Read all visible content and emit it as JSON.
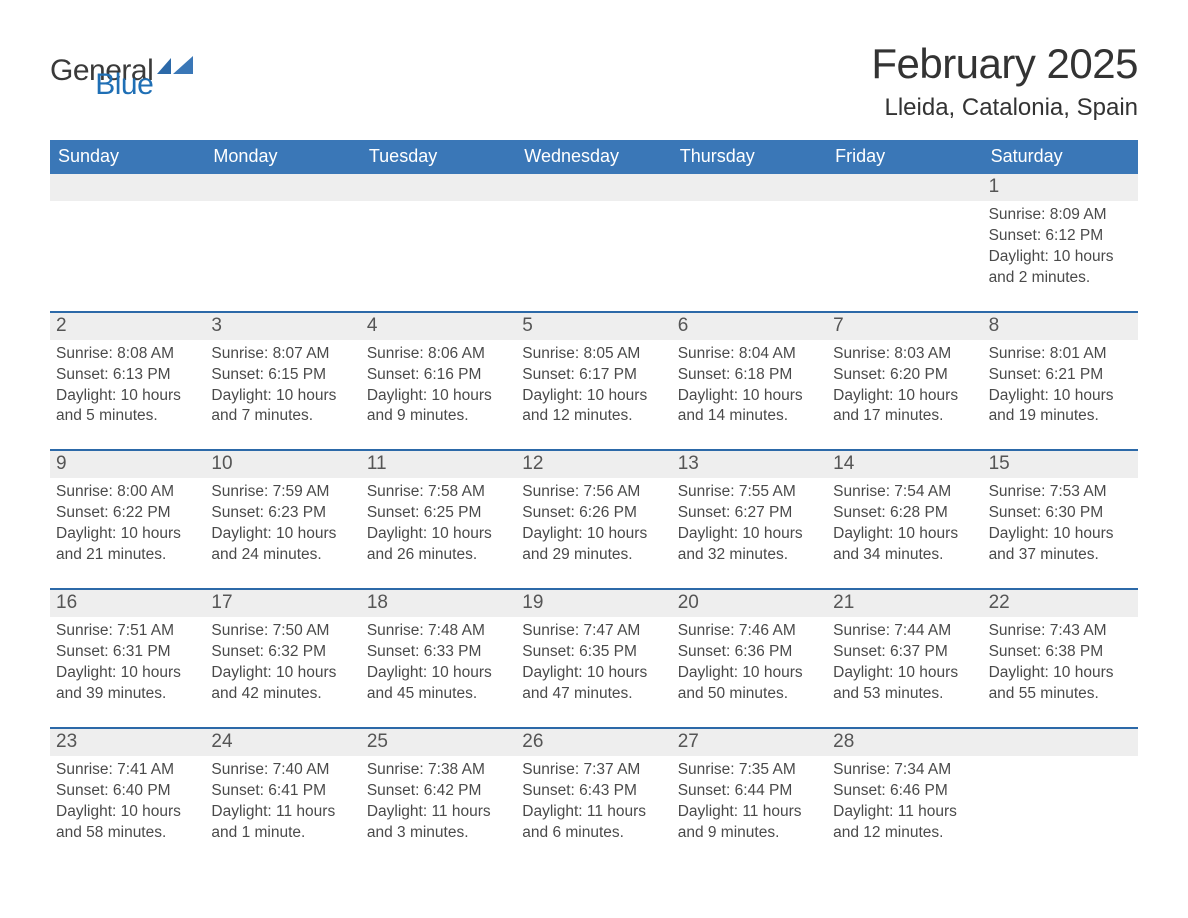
{
  "brand": {
    "word1": "General",
    "word2": "Blue"
  },
  "title": "February 2025",
  "location": "Lleida, Catalonia, Spain",
  "weekdays": [
    "Sunday",
    "Monday",
    "Tuesday",
    "Wednesday",
    "Thursday",
    "Friday",
    "Saturday"
  ],
  "colors": {
    "header_blue": "#3a77b7",
    "accent_blue": "#2c69a8",
    "logo_blue": "#1f6fb5",
    "row_gray": "#eeeeee",
    "background": "#ffffff"
  },
  "weeks": [
    {
      "days": [
        {
          "num": "",
          "lines": []
        },
        {
          "num": "",
          "lines": []
        },
        {
          "num": "",
          "lines": []
        },
        {
          "num": "",
          "lines": []
        },
        {
          "num": "",
          "lines": []
        },
        {
          "num": "",
          "lines": []
        },
        {
          "num": "1",
          "lines": [
            "Sunrise: 8:09 AM",
            "Sunset: 6:12 PM",
            "Daylight: 10 hours and 2 minutes."
          ]
        }
      ]
    },
    {
      "days": [
        {
          "num": "2",
          "lines": [
            "Sunrise: 8:08 AM",
            "Sunset: 6:13 PM",
            "Daylight: 10 hours and 5 minutes."
          ]
        },
        {
          "num": "3",
          "lines": [
            "Sunrise: 8:07 AM",
            "Sunset: 6:15 PM",
            "Daylight: 10 hours and 7 minutes."
          ]
        },
        {
          "num": "4",
          "lines": [
            "Sunrise: 8:06 AM",
            "Sunset: 6:16 PM",
            "Daylight: 10 hours and 9 minutes."
          ]
        },
        {
          "num": "5",
          "lines": [
            "Sunrise: 8:05 AM",
            "Sunset: 6:17 PM",
            "Daylight: 10 hours and 12 minutes."
          ]
        },
        {
          "num": "6",
          "lines": [
            "Sunrise: 8:04 AM",
            "Sunset: 6:18 PM",
            "Daylight: 10 hours and 14 minutes."
          ]
        },
        {
          "num": "7",
          "lines": [
            "Sunrise: 8:03 AM",
            "Sunset: 6:20 PM",
            "Daylight: 10 hours and 17 minutes."
          ]
        },
        {
          "num": "8",
          "lines": [
            "Sunrise: 8:01 AM",
            "Sunset: 6:21 PM",
            "Daylight: 10 hours and 19 minutes."
          ]
        }
      ]
    },
    {
      "days": [
        {
          "num": "9",
          "lines": [
            "Sunrise: 8:00 AM",
            "Sunset: 6:22 PM",
            "Daylight: 10 hours and 21 minutes."
          ]
        },
        {
          "num": "10",
          "lines": [
            "Sunrise: 7:59 AM",
            "Sunset: 6:23 PM",
            "Daylight: 10 hours and 24 minutes."
          ]
        },
        {
          "num": "11",
          "lines": [
            "Sunrise: 7:58 AM",
            "Sunset: 6:25 PM",
            "Daylight: 10 hours and 26 minutes."
          ]
        },
        {
          "num": "12",
          "lines": [
            "Sunrise: 7:56 AM",
            "Sunset: 6:26 PM",
            "Daylight: 10 hours and 29 minutes."
          ]
        },
        {
          "num": "13",
          "lines": [
            "Sunrise: 7:55 AM",
            "Sunset: 6:27 PM",
            "Daylight: 10 hours and 32 minutes."
          ]
        },
        {
          "num": "14",
          "lines": [
            "Sunrise: 7:54 AM",
            "Sunset: 6:28 PM",
            "Daylight: 10 hours and 34 minutes."
          ]
        },
        {
          "num": "15",
          "lines": [
            "Sunrise: 7:53 AM",
            "Sunset: 6:30 PM",
            "Daylight: 10 hours and 37 minutes."
          ]
        }
      ]
    },
    {
      "days": [
        {
          "num": "16",
          "lines": [
            "Sunrise: 7:51 AM",
            "Sunset: 6:31 PM",
            "Daylight: 10 hours and 39 minutes."
          ]
        },
        {
          "num": "17",
          "lines": [
            "Sunrise: 7:50 AM",
            "Sunset: 6:32 PM",
            "Daylight: 10 hours and 42 minutes."
          ]
        },
        {
          "num": "18",
          "lines": [
            "Sunrise: 7:48 AM",
            "Sunset: 6:33 PM",
            "Daylight: 10 hours and 45 minutes."
          ]
        },
        {
          "num": "19",
          "lines": [
            "Sunrise: 7:47 AM",
            "Sunset: 6:35 PM",
            "Daylight: 10 hours and 47 minutes."
          ]
        },
        {
          "num": "20",
          "lines": [
            "Sunrise: 7:46 AM",
            "Sunset: 6:36 PM",
            "Daylight: 10 hours and 50 minutes."
          ]
        },
        {
          "num": "21",
          "lines": [
            "Sunrise: 7:44 AM",
            "Sunset: 6:37 PM",
            "Daylight: 10 hours and 53 minutes."
          ]
        },
        {
          "num": "22",
          "lines": [
            "Sunrise: 7:43 AM",
            "Sunset: 6:38 PM",
            "Daylight: 10 hours and 55 minutes."
          ]
        }
      ]
    },
    {
      "days": [
        {
          "num": "23",
          "lines": [
            "Sunrise: 7:41 AM",
            "Sunset: 6:40 PM",
            "Daylight: 10 hours and 58 minutes."
          ]
        },
        {
          "num": "24",
          "lines": [
            "Sunrise: 7:40 AM",
            "Sunset: 6:41 PM",
            "Daylight: 11 hours and 1 minute."
          ]
        },
        {
          "num": "25",
          "lines": [
            "Sunrise: 7:38 AM",
            "Sunset: 6:42 PM",
            "Daylight: 11 hours and 3 minutes."
          ]
        },
        {
          "num": "26",
          "lines": [
            "Sunrise: 7:37 AM",
            "Sunset: 6:43 PM",
            "Daylight: 11 hours and 6 minutes."
          ]
        },
        {
          "num": "27",
          "lines": [
            "Sunrise: 7:35 AM",
            "Sunset: 6:44 PM",
            "Daylight: 11 hours and 9 minutes."
          ]
        },
        {
          "num": "28",
          "lines": [
            "Sunrise: 7:34 AM",
            "Sunset: 6:46 PM",
            "Daylight: 11 hours and 12 minutes."
          ]
        },
        {
          "num": "",
          "lines": []
        }
      ]
    }
  ]
}
